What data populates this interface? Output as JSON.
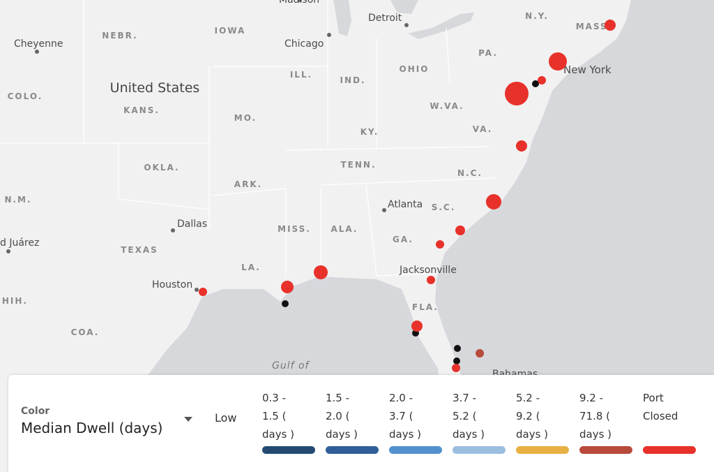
{
  "map": {
    "labels": [
      "Madison",
      "Detroit",
      "N.Y.",
      "MASS.",
      "NEBR.",
      "IOWA",
      "Cheyenne",
      "Chicago",
      "PA.",
      "OHIO",
      "New York",
      "COLO.",
      "United States",
      "ILL.",
      "IND.",
      "KANS.",
      "W.VA.",
      "MO.",
      "VA.",
      "KY.",
      "OKLA.",
      "TENN.",
      "N.C.",
      "ARK.",
      "N.M.",
      "Atlanta",
      "S.C.",
      "Dallas",
      "MISS.",
      "ALA.",
      "GA.",
      "d Juárez",
      "TEXAS",
      "LA.",
      "Jacksonville",
      "Houston",
      "FLA.",
      "CHIH.",
      "COA.",
      "Gulf of",
      "Bahamas"
    ]
  },
  "legend": {
    "title": "Color",
    "measure": "Median Dwell (days)",
    "low": "Low",
    "items": [
      {
        "label": "0.3 - 1.5 ( days )",
        "color": "#244a72"
      },
      {
        "label": "1.5 - 2.0 ( days )",
        "color": "#2f5f98"
      },
      {
        "label": "2.0 - 3.7 ( days )",
        "color": "#5290cf"
      },
      {
        "label": "3.7 - 5.2 ( days )",
        "color": "#9bbedf"
      },
      {
        "label": "5.2 - 9.2 ( days )",
        "color": "#e8b043"
      },
      {
        "label": "9.2 - 71.8 ( days )",
        "color": "#b84a3c"
      },
      {
        "label": "Port Closed",
        "color": "#e8312a"
      }
    ]
  }
}
